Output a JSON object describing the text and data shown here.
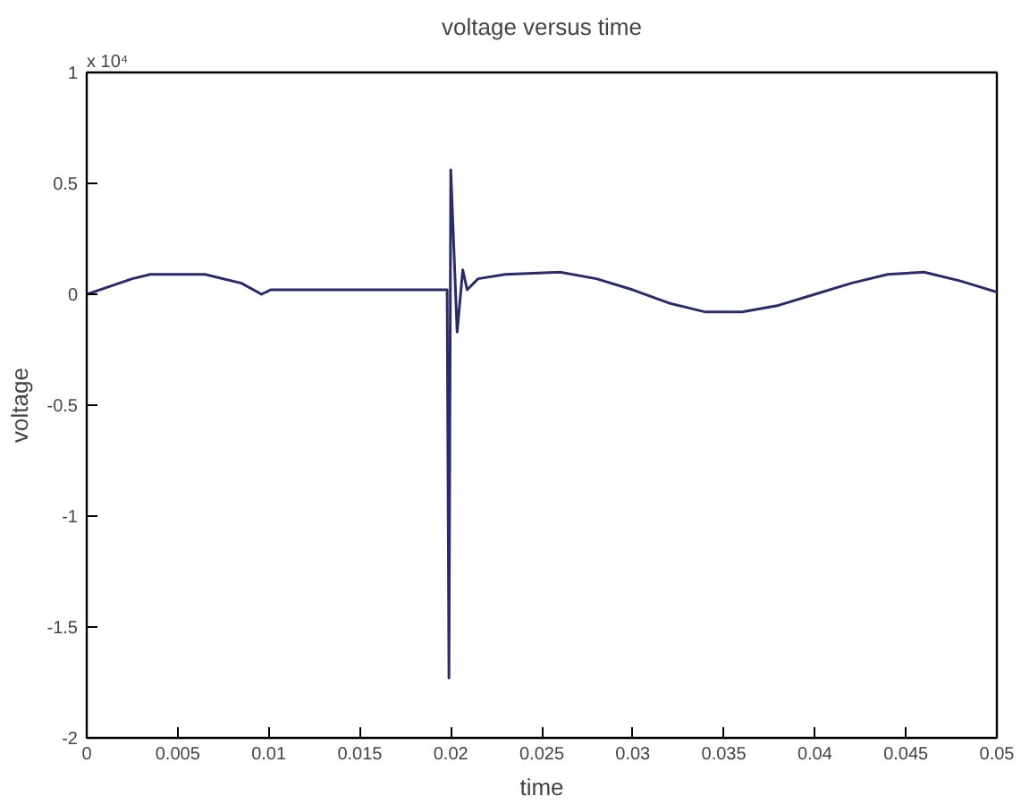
{
  "chart_data": {
    "type": "line",
    "title": "voltage versus time",
    "xlabel": "time",
    "ylabel": "voltage",
    "annotations": [
      "x 10⁴"
    ],
    "x": [
      0,
      0.0025,
      0.0035,
      0.005,
      0.0065,
      0.0085,
      0.0096,
      0.0101,
      0.0198,
      0.0199,
      0.02,
      0.02035,
      0.02066,
      0.0209,
      0.0215,
      0.023,
      0.026,
      0.028,
      0.03,
      0.032,
      0.034,
      0.036,
      0.038,
      0.04,
      0.042,
      0.044,
      0.046,
      0.048,
      0.05
    ],
    "series": [
      {
        "color": "#2b2b6b",
        "values": [
          0,
          0.07,
          0.09,
          0.09,
          0.09,
          0.05,
          0,
          0.02,
          0.02,
          -1.73,
          0.56,
          -0.17,
          0.11,
          0.02,
          0.07,
          0.09,
          0.1,
          0.07,
          0.02,
          -0.04,
          -0.08,
          -0.08,
          -0.05,
          0,
          0.05,
          0.09,
          0.1,
          0.06,
          0.01
        ]
      }
    ],
    "xlim": [
      0,
      0.05
    ],
    "ylim": [
      -2,
      1
    ],
    "xticks": [
      0,
      0.005,
      0.01,
      0.015,
      0.02,
      0.025,
      0.03,
      0.035,
      0.04,
      0.045,
      0.05
    ],
    "yticks": [
      -2,
      -1.5,
      -1,
      -0.5,
      0,
      0.5,
      1
    ],
    "grid": false,
    "marker": "none",
    "line_style": "solid"
  }
}
